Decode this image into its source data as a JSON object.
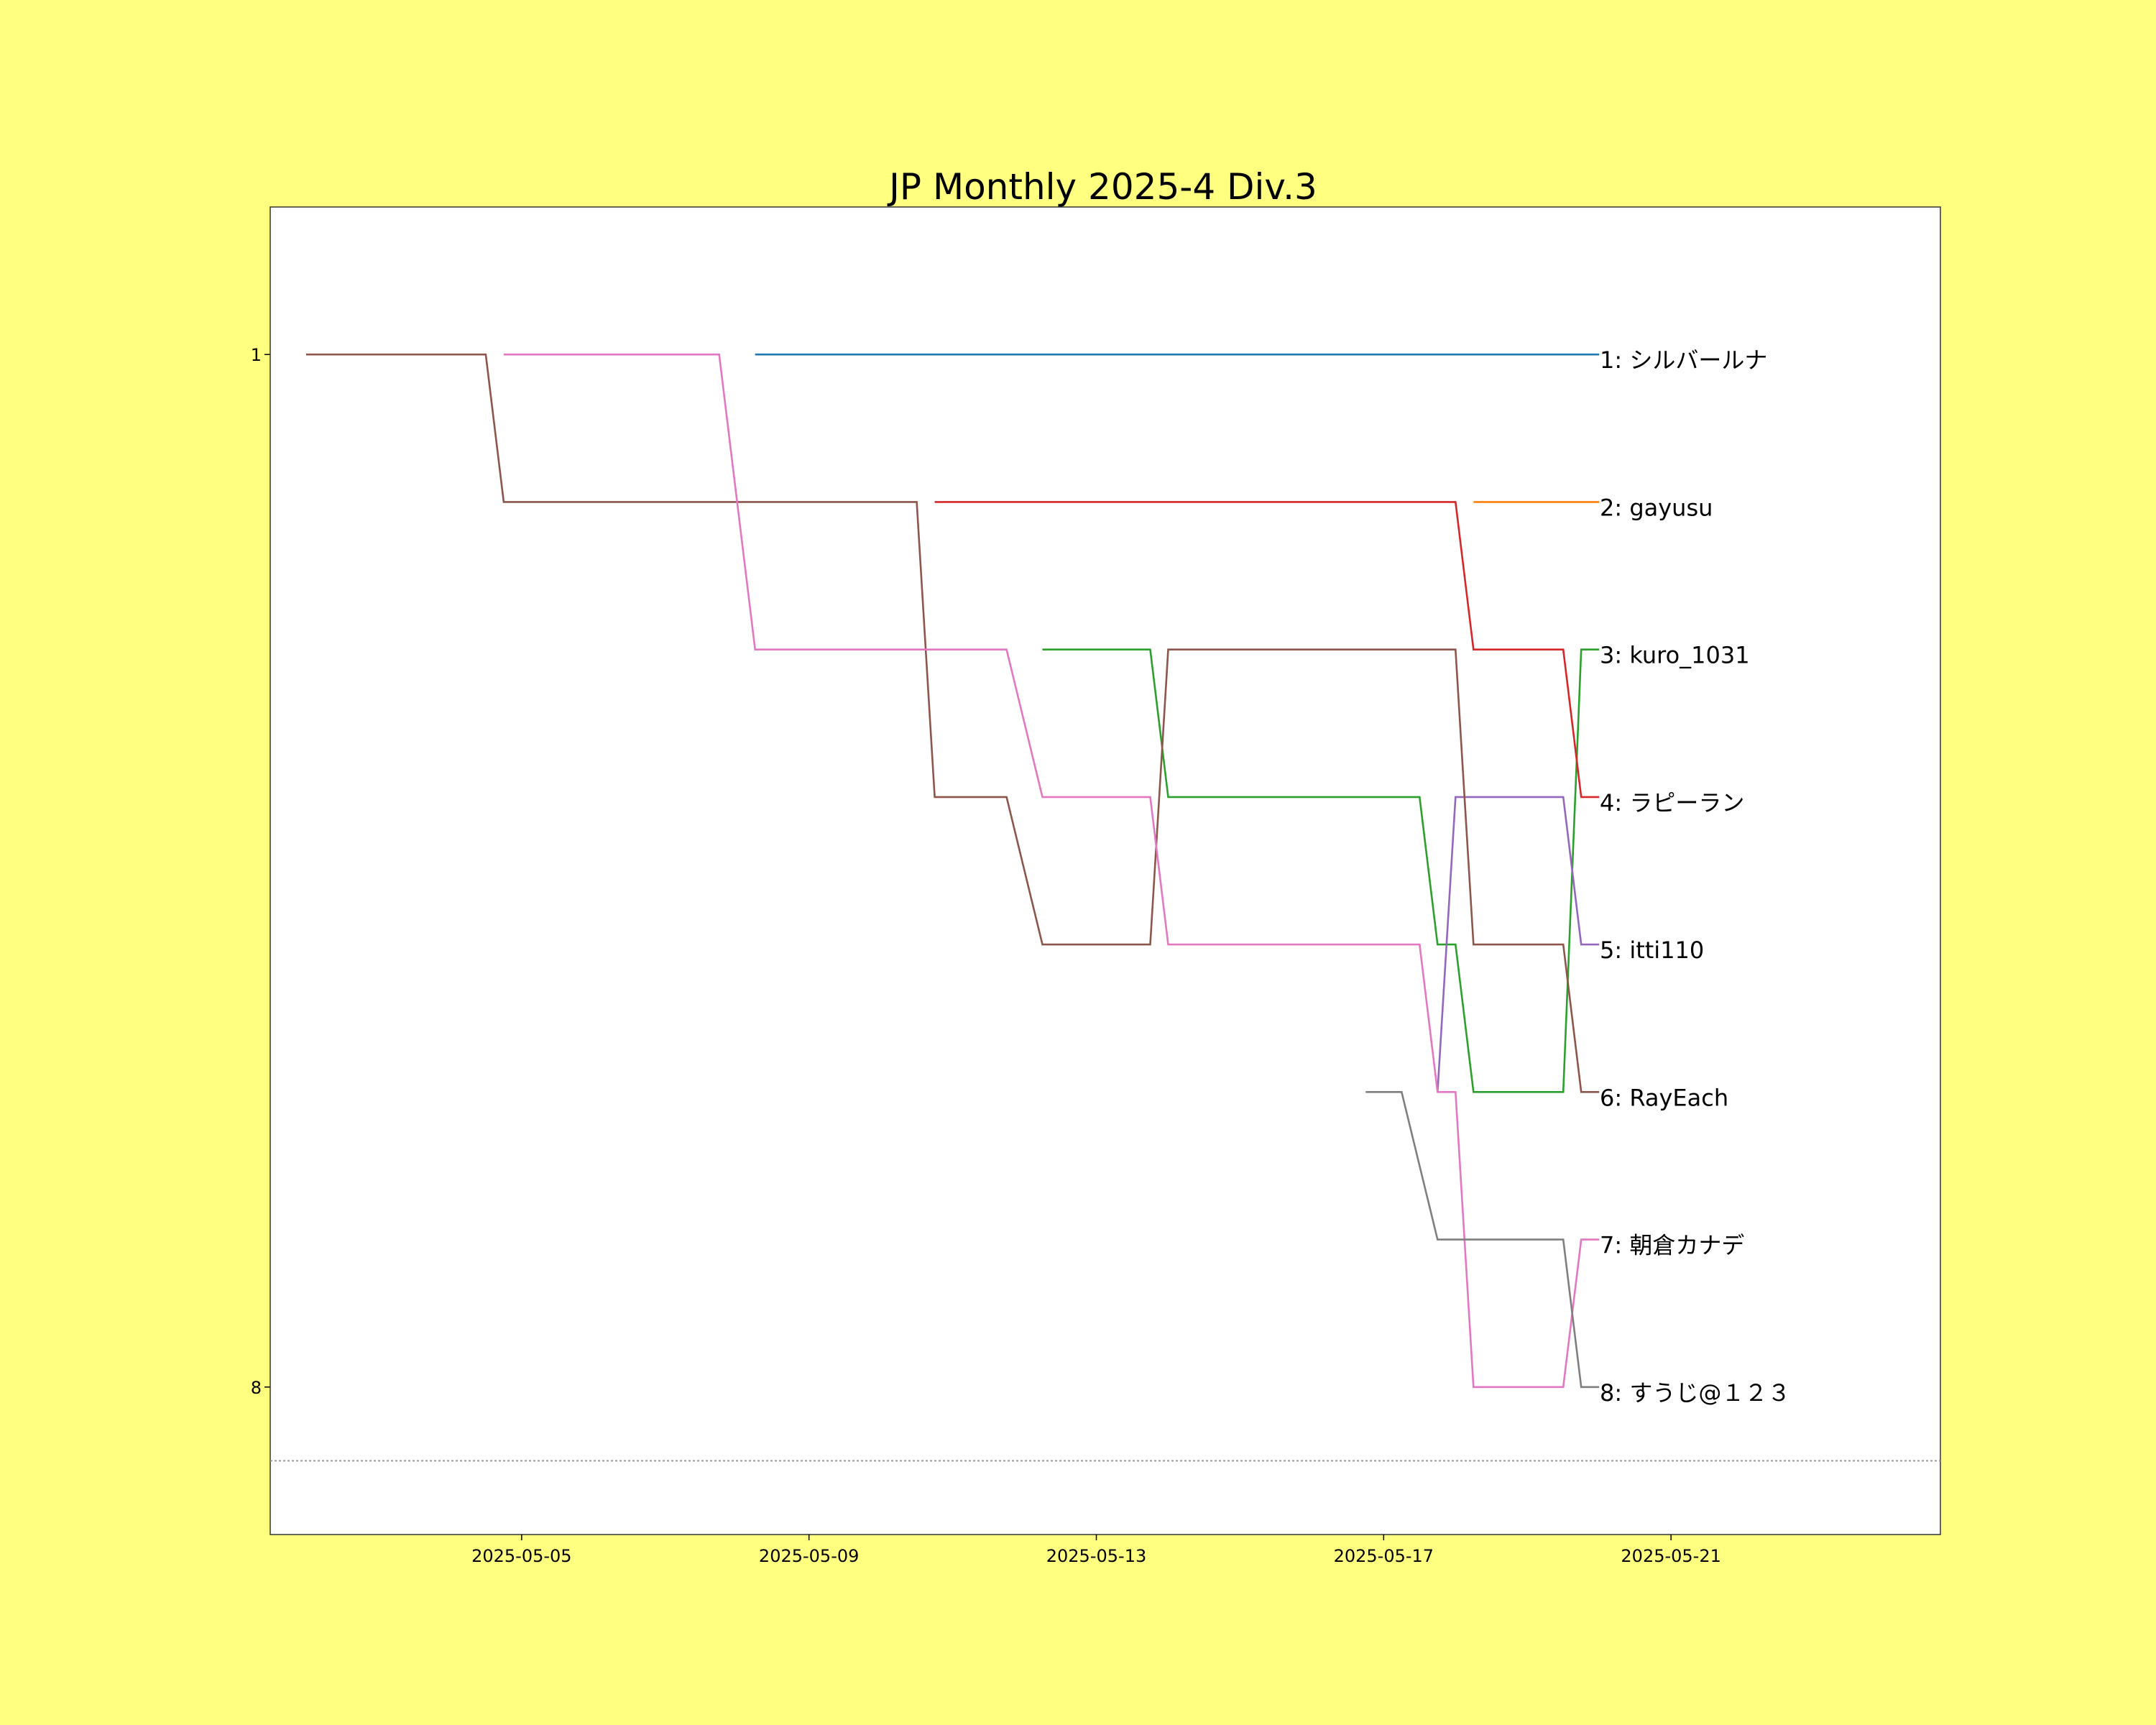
{
  "chart_data": {
    "type": "line",
    "title": "JP Monthly 2025-4 Div.3",
    "xlabel": "",
    "ylabel": "",
    "x_tick_labels": [
      "2025-05-05",
      "2025-05-09",
      "2025-05-13",
      "2025-05-17",
      "2025-05-21"
    ],
    "y_tick_labels": [
      "1",
      "8"
    ],
    "xlim": [
      "2025-05-01 12:00",
      "2025-05-24 18:00"
    ],
    "ylim": [
      9.0,
      0.0
    ],
    "y_inverted": true,
    "threshold_line": {
      "y": 8.5,
      "style": "dotted",
      "color": "#999999"
    },
    "grid": false,
    "legend": "none",
    "series": [
      {
        "label": "1: シルバールナ",
        "color": "#1f77b4",
        "points": [
          [
            "2025-05-08 06:00",
            1
          ],
          [
            "2025-05-20 00:00",
            1
          ]
        ]
      },
      {
        "label": "2: gayusu",
        "color": "#ff7f0e",
        "points": [
          [
            "2025-05-18 06:00",
            2
          ],
          [
            "2025-05-20 00:00",
            2
          ]
        ]
      },
      {
        "label": "3: kuro_1031",
        "color": "#2ca02c",
        "points": [
          [
            "2025-05-12 06:00",
            3
          ],
          [
            "2025-05-13 18:00",
            3
          ],
          [
            "2025-05-14 00:00",
            4
          ],
          [
            "2025-05-17 12:00",
            4
          ],
          [
            "2025-05-17 18:00",
            5
          ],
          [
            "2025-05-18 00:00",
            5
          ],
          [
            "2025-05-18 06:00",
            6
          ],
          [
            "2025-05-19 12:00",
            6
          ],
          [
            "2025-05-19 18:00",
            3
          ],
          [
            "2025-05-20 00:00",
            3
          ]
        ]
      },
      {
        "label": "4: ラピーラン",
        "color": "#d62728",
        "points": [
          [
            "2025-05-10 18:00",
            2
          ],
          [
            "2025-05-18 00:00",
            2
          ],
          [
            "2025-05-18 06:00",
            3
          ],
          [
            "2025-05-19 12:00",
            3
          ],
          [
            "2025-05-19 18:00",
            4
          ],
          [
            "2025-05-20 00:00",
            4
          ]
        ]
      },
      {
        "label": "5: itti110",
        "color": "#9467bd",
        "points": [
          [
            "2025-05-17 18:00",
            6
          ],
          [
            "2025-05-18 00:00",
            4
          ],
          [
            "2025-05-19 12:00",
            4
          ],
          [
            "2025-05-19 18:00",
            5
          ],
          [
            "2025-05-20 00:00",
            5
          ]
        ]
      },
      {
        "label": "6: RayEach",
        "color": "#8c564b",
        "points": [
          [
            "2025-05-02 00:00",
            1
          ],
          [
            "2025-05-04 12:00",
            1
          ],
          [
            "2025-05-04 18:00",
            2
          ],
          [
            "2025-05-10 12:00",
            2
          ],
          [
            "2025-05-10 18:00",
            4
          ],
          [
            "2025-05-11 18:00",
            4
          ],
          [
            "2025-05-12 06:00",
            5
          ],
          [
            "2025-05-13 18:00",
            5
          ],
          [
            "2025-05-14 00:00",
            3
          ],
          [
            "2025-05-18 00:00",
            3
          ],
          [
            "2025-05-18 06:00",
            5
          ],
          [
            "2025-05-19 12:00",
            5
          ],
          [
            "2025-05-19 18:00",
            6
          ],
          [
            "2025-05-20 00:00",
            6
          ]
        ]
      },
      {
        "label": "7: 朝倉カナデ",
        "color": "#e377c2",
        "points": [
          [
            "2025-05-04 18:00",
            1
          ],
          [
            "2025-05-07 18:00",
            1
          ],
          [
            "2025-05-08 06:00",
            3
          ],
          [
            "2025-05-11 18:00",
            3
          ],
          [
            "2025-05-12 06:00",
            4
          ],
          [
            "2025-05-13 18:00",
            4
          ],
          [
            "2025-05-14 00:00",
            5
          ],
          [
            "2025-05-17 12:00",
            5
          ],
          [
            "2025-05-17 18:00",
            6
          ],
          [
            "2025-05-18 00:00",
            6
          ],
          [
            "2025-05-18 06:00",
            8
          ],
          [
            "2025-05-19 12:00",
            8
          ],
          [
            "2025-05-19 18:00",
            7
          ],
          [
            "2025-05-20 00:00",
            7
          ]
        ]
      },
      {
        "label": "8: すうじ@１２３",
        "color": "#7f7f7f",
        "points": [
          [
            "2025-05-16 18:00",
            6
          ],
          [
            "2025-05-17 06:00",
            6
          ],
          [
            "2025-05-17 18:00",
            7
          ],
          [
            "2025-05-19 12:00",
            7
          ],
          [
            "2025-05-19 18:00",
            8
          ],
          [
            "2025-05-20 00:00",
            8
          ]
        ]
      }
    ]
  }
}
